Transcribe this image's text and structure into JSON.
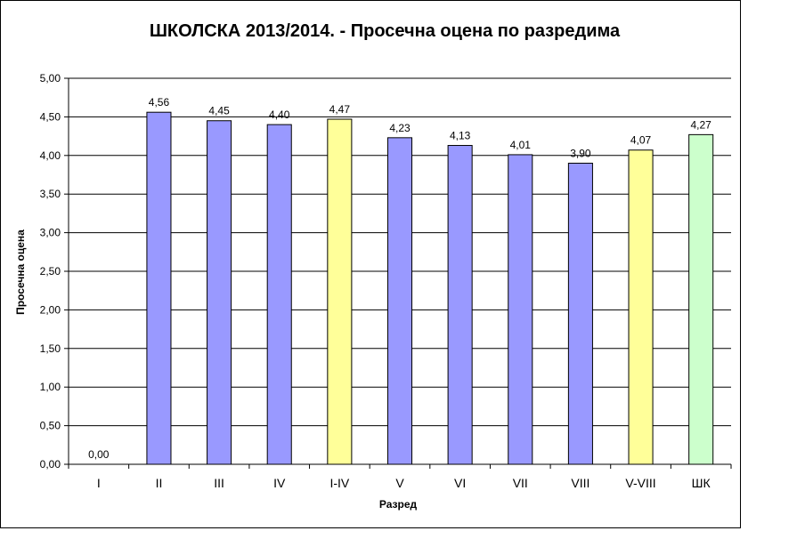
{
  "chart_data": {
    "type": "bar",
    "title": "ШКОЛСКА 2013/2014. - Просечна оцена по разредима",
    "xlabel": "Разред",
    "ylabel": "Просечна оцена",
    "categories": [
      "I",
      "II",
      "III",
      "IV",
      "I-IV",
      "V",
      "VI",
      "VII",
      "VIII",
      "V-VIII",
      "ШК"
    ],
    "values": [
      0.0,
      4.56,
      4.45,
      4.4,
      4.47,
      4.23,
      4.13,
      4.01,
      3.9,
      4.07,
      4.27
    ],
    "data_labels": [
      "0,00",
      "4,56",
      "4,45",
      "4,40",
      "4,47",
      "4,23",
      "4,13",
      "4,01",
      "3,90",
      "4,07",
      "4,27"
    ],
    "bar_colors": [
      "#9999ff",
      "#9999ff",
      "#9999ff",
      "#9999ff",
      "#ffff99",
      "#9999ff",
      "#9999ff",
      "#9999ff",
      "#9999ff",
      "#ffff99",
      "#ccffcc"
    ],
    "ylim": [
      0,
      5
    ],
    "yticks": [
      0,
      0.5,
      1,
      1.5,
      2,
      2.5,
      3,
      3.5,
      4,
      4.5,
      5
    ],
    "ytick_labels": [
      "0,00",
      "0,50",
      "1,00",
      "1,50",
      "2,00",
      "2,50",
      "3,00",
      "3,50",
      "4,00",
      "4,50",
      "5,00"
    ],
    "grid": true,
    "legend": "none"
  }
}
